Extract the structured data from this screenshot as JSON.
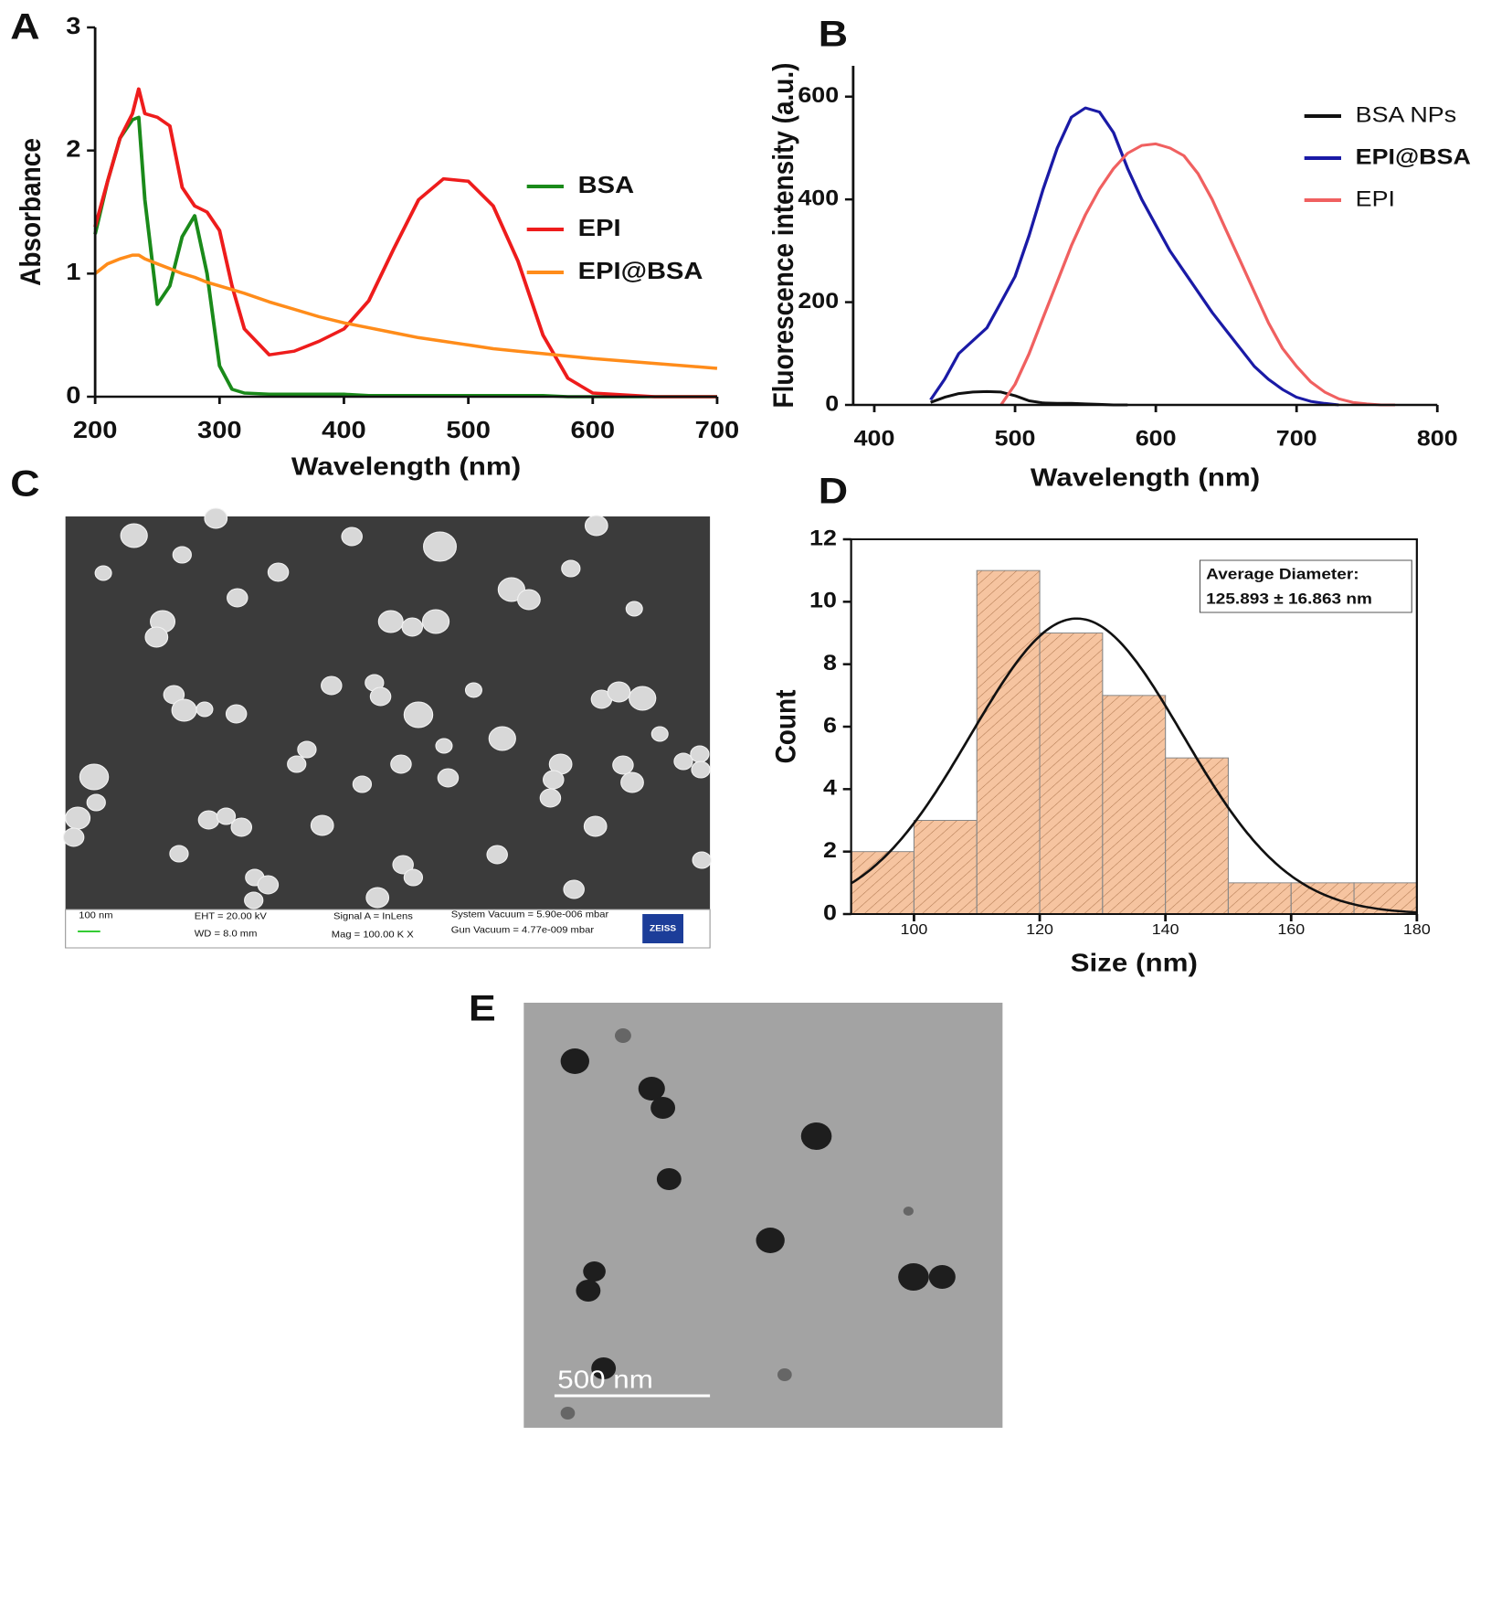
{
  "panel_labels": [
    "A",
    "B",
    "C",
    "D",
    "E"
  ],
  "chart_data": [
    {
      "type": "line",
      "xlabel": "Wavelength (nm)",
      "ylabel": "Absorbance",
      "x": [
        200,
        210,
        220,
        230,
        235,
        240,
        250,
        260,
        270,
        280,
        290,
        300,
        310,
        320,
        340,
        360,
        380,
        400,
        420,
        440,
        460,
        480,
        500,
        520,
        540,
        560,
        580,
        600,
        650,
        700
      ],
      "xlim": [
        200,
        700
      ],
      "ylim": [
        0,
        3
      ],
      "xticks": [
        200,
        300,
        400,
        500,
        600,
        700
      ],
      "yticks": [
        0,
        1,
        2,
        3
      ],
      "legend": "right",
      "series": [
        {
          "name": "BSA",
          "color": "#1a8a1a",
          "values": [
            1.32,
            1.75,
            2.1,
            2.25,
            2.27,
            1.6,
            0.75,
            0.9,
            1.3,
            1.47,
            1.0,
            0.25,
            0.06,
            0.03,
            0.02,
            0.02,
            0.02,
            0.02,
            0.01,
            0.01,
            0.01,
            0.01,
            0.01,
            0.01,
            0.01,
            0.01,
            0,
            0,
            0,
            0
          ]
        },
        {
          "name": "EPI",
          "color": "#ee1c1c",
          "values": [
            1.38,
            1.75,
            2.1,
            2.3,
            2.5,
            2.3,
            2.27,
            2.2,
            1.7,
            1.55,
            1.5,
            1.35,
            0.9,
            0.55,
            0.34,
            0.37,
            0.45,
            0.55,
            0.78,
            1.2,
            1.6,
            1.77,
            1.75,
            1.55,
            1.1,
            0.5,
            0.15,
            0.03,
            0,
            0
          ]
        },
        {
          "name": "EPI@BSA",
          "color": "#ff8c1a",
          "values": [
            1.0,
            1.08,
            1.12,
            1.15,
            1.15,
            1.12,
            1.08,
            1.04,
            1.0,
            0.97,
            0.93,
            0.9,
            0.87,
            0.84,
            0.77,
            0.71,
            0.65,
            0.6,
            0.56,
            0.52,
            0.48,
            0.45,
            0.42,
            0.39,
            0.37,
            0.35,
            0.33,
            0.31,
            0.27,
            0.23
          ]
        }
      ]
    },
    {
      "type": "line",
      "xlabel": "Wavelength (nm)",
      "ylabel": "Fluorescence intensity (a.u.)",
      "x": [
        430,
        440,
        450,
        460,
        470,
        480,
        490,
        500,
        510,
        520,
        530,
        540,
        550,
        560,
        570,
        580,
        590,
        600,
        610,
        620,
        630,
        640,
        650,
        660,
        670,
        680,
        690,
        700,
        710,
        720,
        730,
        740,
        750,
        760,
        770,
        780
      ],
      "xlim": [
        385,
        800
      ],
      "ylim": [
        0,
        660
      ],
      "xticks": [
        400,
        500,
        600,
        700,
        800
      ],
      "yticks": [
        0,
        200,
        400,
        600
      ],
      "legend": "upper right",
      "series": [
        {
          "name": "BSA NPs",
          "color": "#111111",
          "values": [
            null,
            5,
            15,
            22,
            25,
            26,
            25,
            18,
            8,
            4,
            3,
            3,
            2,
            1,
            0,
            0,
            null,
            null,
            null,
            null,
            null,
            null,
            null,
            null,
            null,
            null,
            null,
            null,
            null,
            null,
            null,
            null,
            null,
            null,
            null,
            null
          ]
        },
        {
          "name": "EPI@BSA",
          "color": "#1a1aa6",
          "values": [
            null,
            10,
            50,
            100,
            125,
            150,
            200,
            250,
            330,
            420,
            500,
            560,
            578,
            570,
            530,
            460,
            400,
            350,
            300,
            260,
            220,
            180,
            145,
            110,
            75,
            50,
            30,
            15,
            7,
            3,
            0,
            null,
            null,
            null,
            null,
            null
          ]
        },
        {
          "name": "EPI",
          "color": "#f06060",
          "values": [
            null,
            null,
            null,
            null,
            null,
            null,
            0,
            40,
            100,
            170,
            240,
            310,
            370,
            420,
            460,
            490,
            505,
            508,
            500,
            485,
            450,
            400,
            340,
            280,
            220,
            160,
            110,
            75,
            45,
            25,
            12,
            5,
            2,
            0,
            0,
            null
          ]
        }
      ]
    },
    {
      "type": "histogram",
      "xlabel": "Size (nm)",
      "ylabel": "Count",
      "bins": [
        90,
        100,
        110,
        120,
        130,
        140,
        150,
        160,
        170,
        180
      ],
      "values": [
        2,
        3,
        11,
        9,
        7,
        5,
        1,
        1,
        1
      ],
      "color": "#f6c4a0",
      "xlim": [
        90,
        180
      ],
      "ylim": [
        0,
        12
      ],
      "xticks": [
        100,
        120,
        140,
        160,
        180
      ],
      "yticks": [
        0,
        2,
        4,
        6,
        8,
        10,
        12
      ],
      "fit": {
        "mean": 125.893,
        "sd": 16.863
      },
      "annotation": [
        "Average Diameter:",
        "125.893 ± 16.863 nm"
      ]
    }
  ],
  "sem": {
    "scale": "100 nm",
    "info": [
      "EHT = 20.00 kV",
      "WD = 8.0 mm",
      "Signal A = InLens",
      "Mag = 100.00 K X",
      "System Vacuum = 5.90e-006 mbar",
      "Gun Vacuum = 4.77e-009 mbar"
    ],
    "logo": "ZEISS"
  },
  "tem": {
    "scale": "500 nm"
  }
}
